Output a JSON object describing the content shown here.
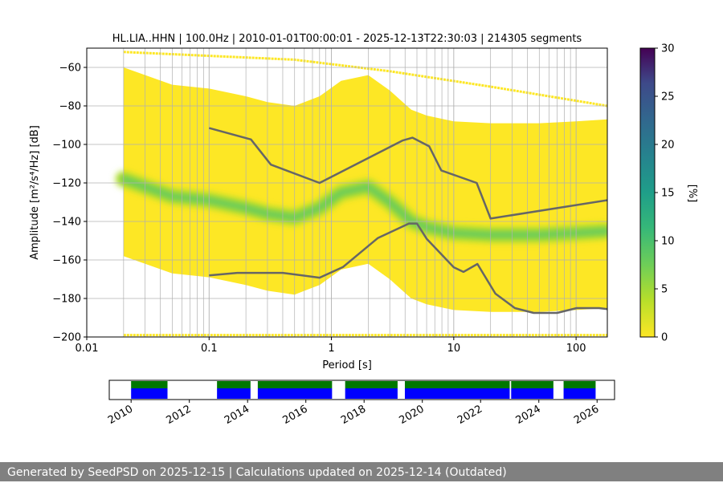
{
  "chart_data": [
    {
      "type": "heatmap",
      "title": "HL.LIA..HHN | 100.0Hz | 2010-01-01T00:00:01 - 2025-12-13T22:30:03 | 214305 segments",
      "xlabel": "Period [s]",
      "ylabel": "Amplitude [m²/s⁴/Hz] [dB]",
      "x_scale": "log",
      "xlim": [
        0.01,
        180
      ],
      "ylim": [
        -200,
        -50
      ],
      "x_ticks": [
        0.01,
        0.1,
        1,
        10,
        100
      ],
      "x_tick_labels": [
        "0.01",
        "0.1",
        "1",
        "10",
        "100"
      ],
      "y_ticks": [
        -200,
        -180,
        -160,
        -140,
        -120,
        -100,
        -80,
        -60
      ],
      "y_tick_labels": [
        "−200",
        "−180",
        "−160",
        "−140",
        "−120",
        "−100",
        "−80",
        "−60"
      ],
      "grid": true,
      "colormap": "viridis_r",
      "colorbar": {
        "label": "[%]",
        "range": [
          0,
          30
        ],
        "ticks": [
          0,
          5,
          10,
          15,
          20,
          25,
          30
        ],
        "tick_labels": [
          "0",
          "5",
          "10",
          "15",
          "20",
          "25",
          "30"
        ]
      },
      "mode_curve": {
        "period": [
          0.02,
          0.05,
          0.1,
          0.2,
          0.3,
          0.5,
          0.8,
          1.2,
          2,
          3,
          4.5,
          6,
          10,
          20,
          50,
          100,
          180
        ],
        "amplitude": [
          -118,
          -127,
          -129,
          -133,
          -136,
          -138,
          -133,
          -125,
          -122,
          -130,
          -140,
          -143,
          -146,
          -147,
          -147,
          -146,
          -145
        ]
      },
      "series": [
        {
          "name": "NHNM",
          "period": [
            0.1,
            0.22,
            0.32,
            0.8,
            3.8,
            4.6,
            6.3,
            7.9,
            15.4,
            20,
            354.8
          ],
          "amplitude": [
            -91.5,
            -97.4,
            -110.5,
            -120,
            -98,
            -96.5,
            -101,
            -113.5,
            -120,
            -138.5,
            -126
          ]
        },
        {
          "name": "NLNM",
          "period": [
            0.1,
            0.17,
            0.4,
            0.8,
            1.24,
            2.4,
            4.3,
            5,
            6,
            10,
            12,
            15.6,
            21.9,
            31.6,
            45,
            70,
            101,
            154,
            328
          ],
          "amplitude": [
            -168,
            -166.7,
            -166.7,
            -169.2,
            -163.7,
            -148.6,
            -141.1,
            -141.1,
            -149,
            -163.8,
            -166.2,
            -162.1,
            -177.5,
            -185,
            -187.5,
            -187.5,
            -185,
            -185,
            -187.5
          ]
        }
      ],
      "colors": {
        "heat_low": "#fde725",
        "heat_mid": "#5ec962",
        "heat_peak": "#21918c",
        "model_lines": "#666666",
        "grid": "#b0b0b0"
      }
    },
    {
      "type": "timeline",
      "x_ticks": [
        "2010",
        "2012",
        "2014",
        "2016",
        "2018",
        "2020",
        "2022",
        "2024",
        "2026"
      ],
      "xlim": [
        2009.25,
        2026.6
      ],
      "data_availability": [
        [
          2010.0,
          2011.25
        ],
        [
          2012.95,
          2014.1
        ],
        [
          2014.35,
          2016.9
        ],
        [
          2017.35,
          2019.15
        ],
        [
          2019.4,
          2023.0
        ],
        [
          2023.05,
          2024.5
        ],
        [
          2024.85,
          2025.95
        ]
      ],
      "processed_segments": [
        [
          2010.0,
          2011.25
        ],
        [
          2012.95,
          2014.1
        ],
        [
          2014.35,
          2016.9
        ],
        [
          2017.35,
          2019.15
        ],
        [
          2019.4,
          2023.0
        ],
        [
          2023.05,
          2024.5
        ],
        [
          2024.85,
          2025.95
        ]
      ],
      "colors": {
        "data": "#0000ff",
        "processed": "#007700"
      }
    }
  ],
  "footer": {
    "text": "Generated by SeedPSD on 2025-12-15 | Calculations updated on 2025-12-14 (Outdated)",
    "bg": "#808080"
  }
}
